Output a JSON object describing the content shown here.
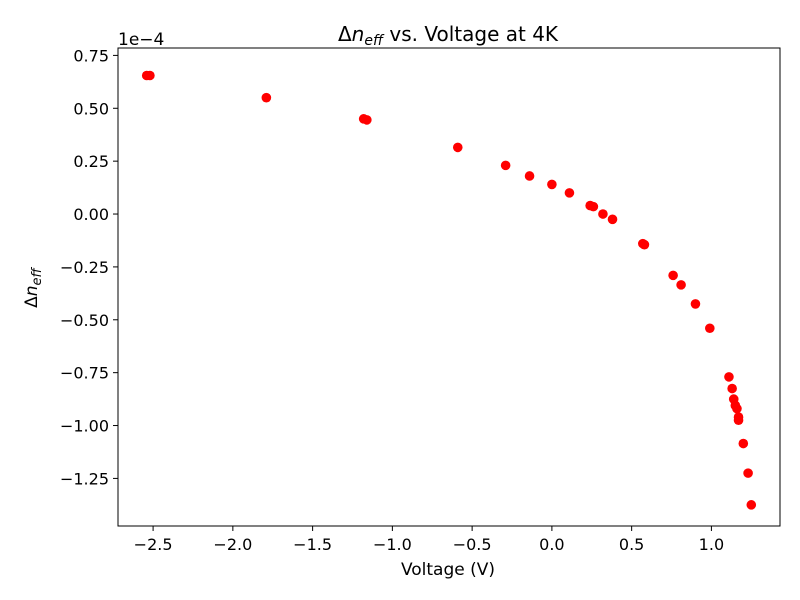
{
  "chart_data": {
    "type": "scatter",
    "title": {
      "symbol": "Δ",
      "var": "n",
      "sub": "eff",
      "rest": " vs. Voltage at 4K"
    },
    "xlabel": "Voltage (V)",
    "ylabel": {
      "symbol": "Δ",
      "var": "n",
      "sub": "eff"
    },
    "y_offset_label": "1e−4",
    "y_scale_factor": 0.0001,
    "xlim": [
      -2.72,
      1.43
    ],
    "ylim": [
      -1.475,
      0.785
    ],
    "x_ticks": [
      -2.5,
      -2.0,
      -1.5,
      -1.0,
      -0.5,
      0.0,
      0.5,
      1.0
    ],
    "x_tick_labels": [
      "−2.5",
      "−2.0",
      "−1.5",
      "−1.0",
      "−0.5",
      "0.0",
      "0.5",
      "1.0"
    ],
    "y_ticks": [
      0.75,
      0.5,
      0.25,
      0.0,
      -0.25,
      -0.5,
      -0.75,
      -1.0,
      -1.25
    ],
    "y_tick_labels": [
      "0.75",
      "0.50",
      "0.25",
      "0.00",
      "−0.25",
      "−0.50",
      "−0.75",
      "−1.00",
      "−1.25"
    ],
    "grid": false,
    "marker_color": "#ff0000",
    "series": [
      {
        "x": [
          -2.54,
          -2.52,
          -1.79,
          -1.18,
          -1.16,
          -0.59,
          -0.29,
          -0.14,
          0.0,
          0.11,
          0.24,
          0.26,
          0.32,
          0.38,
          0.57,
          0.58,
          0.76,
          0.81,
          0.9,
          0.99,
          1.11,
          1.13,
          1.14,
          1.15,
          1.16,
          1.17,
          1.17,
          1.2,
          1.23,
          1.25
        ],
        "y": [
          0.655,
          0.655,
          0.55,
          0.45,
          0.445,
          0.315,
          0.23,
          0.18,
          0.14,
          0.1,
          0.04,
          0.035,
          0.0,
          -0.025,
          -0.14,
          -0.145,
          -0.29,
          -0.335,
          -0.425,
          -0.54,
          -0.77,
          -0.825,
          -0.875,
          -0.905,
          -0.92,
          -0.96,
          -0.975,
          -1.085,
          -1.225,
          -1.375
        ]
      }
    ]
  }
}
